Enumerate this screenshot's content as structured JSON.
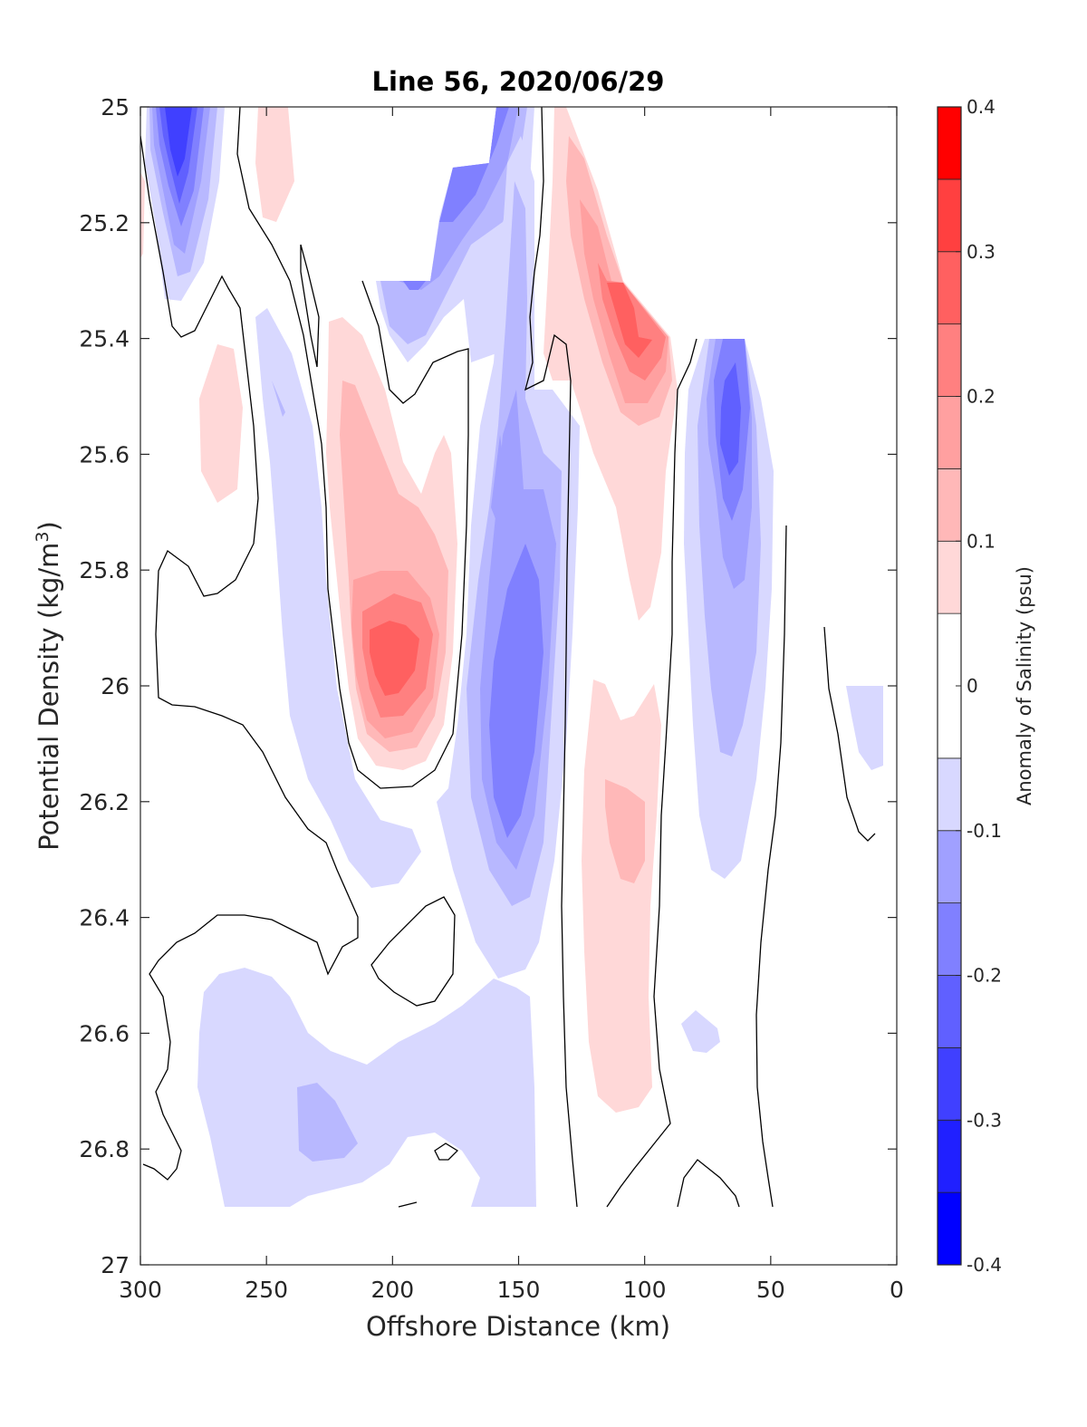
{
  "chart_data": {
    "type": "heatmap",
    "title": "Line 56, 2020/06/29",
    "xlabel": "Offshore Distance (km)",
    "ylabel_main": "Potential Density (kg/m",
    "ylabel_sup": "3",
    "ylabel_close": ")",
    "colorbar_label": "Anomaly of Salinity (psu)",
    "xlim": [
      300,
      0
    ],
    "ylim": [
      25,
      27
    ],
    "x_reversed": true,
    "y_reversed": true,
    "x_ticks": [
      "300",
      "250",
      "200",
      "150",
      "100",
      "50",
      "0"
    ],
    "y_ticks": [
      "25",
      "25.2",
      "25.4",
      "25.6",
      "25.8",
      "26",
      "26.2",
      "26.4",
      "26.6",
      "26.8",
      "27"
    ],
    "colorbar_ticks": [
      "0.4",
      "0.3",
      "0.2",
      "0.1",
      "0",
      "-0.1",
      "-0.2",
      "-0.3",
      "-0.4"
    ],
    "colorbar_range": [
      -0.4,
      0.4
    ],
    "levels": [
      -0.4,
      -0.35,
      -0.3,
      -0.25,
      -0.2,
      -0.15,
      -0.1,
      -0.05,
      0.05,
      0.1,
      0.15,
      0.2,
      0.25,
      0.3,
      0.35,
      0.4
    ],
    "colors": {
      "n8": "#0000ff",
      "n7": "#2020ff",
      "n6": "#4040ff",
      "n5": "#6060ff",
      "n4": "#8080ff",
      "n3": "#a0a0ff",
      "n2": "#b8b8ff",
      "n1": "#d8d8ff",
      "zero": "#ffffff",
      "p1": "#ffd8d8",
      "p2": "#ffb8b8",
      "p3": "#ffa0a0",
      "p4": "#ff8080",
      "p5": "#ff6060",
      "p6": "#ff4040",
      "p7": "#ff2020",
      "p8": "#ff0000"
    },
    "features": [
      {
        "name": "neg-core-300km",
        "x": 285,
        "y": 25.05,
        "value": -0.28
      },
      {
        "name": "pos-core-198km",
        "x": 197,
        "y": 25.95,
        "value": 0.24
      },
      {
        "name": "neg-core-155km",
        "x": 152,
        "y": 26.05,
        "value": -0.18
      },
      {
        "name": "pos-core-105km",
        "x": 105,
        "y": 25.4,
        "value": 0.3
      },
      {
        "name": "neg-core-68km",
        "x": 68,
        "y": 25.62,
        "value": -0.24
      },
      {
        "name": "pos-core-115km",
        "x": 115,
        "y": 26.25,
        "value": 0.14
      },
      {
        "name": "neg-patch-225km",
        "x": 225,
        "y": 26.8,
        "value": -0.11
      }
    ],
    "zero_contour": "black",
    "grid": false
  }
}
